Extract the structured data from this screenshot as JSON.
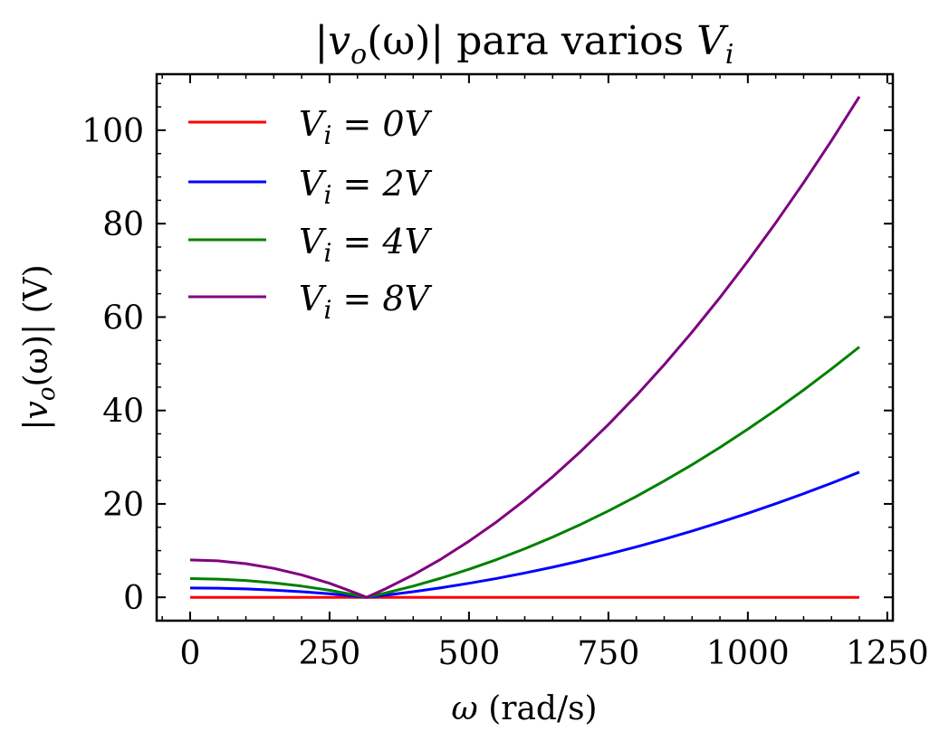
{
  "chart_data": {
    "type": "line",
    "title": "|v_o(ω)| para varios V_i",
    "xlabel": "ω (rad/s)",
    "ylabel": "|v_o(ω)| (V)",
    "xlim": [
      -60,
      1260
    ],
    "ylim": [
      -5,
      112
    ],
    "xticks": [
      0,
      250,
      500,
      750,
      1000,
      1250
    ],
    "yticks": [
      0,
      20,
      40,
      60,
      80,
      100
    ],
    "x_tick_labels": [
      "0",
      "250",
      "500",
      "750",
      "1000",
      "1250"
    ],
    "y_tick_labels": [
      "0",
      "20",
      "40",
      "60",
      "80",
      "100"
    ],
    "grid": false,
    "legend_position": "upper-left",
    "x": [
      0,
      50,
      100,
      150,
      200,
      250,
      300,
      316.2,
      350,
      400,
      450,
      500,
      550,
      600,
      650,
      700,
      750,
      800,
      850,
      900,
      950,
      1000,
      1050,
      1100,
      1150,
      1200
    ],
    "series": [
      {
        "name": "V_i = 0V",
        "color": "#ff0000",
        "values": [
          0,
          0,
          0,
          0,
          0,
          0,
          0,
          0,
          0,
          0,
          0,
          0,
          0,
          0,
          0,
          0,
          0,
          0,
          0,
          0,
          0,
          0,
          0,
          0,
          0,
          0
        ]
      },
      {
        "name": "V_i = 2V",
        "color": "#0000ff",
        "values": [
          2.0,
          1.95,
          1.8,
          1.55,
          1.2,
          0.75,
          0.2,
          0.0,
          0.45,
          1.2,
          2.05,
          3.0,
          4.05,
          5.2,
          6.45,
          7.8,
          9.25,
          10.8,
          12.45,
          14.2,
          16.05,
          18.0,
          20.05,
          22.2,
          24.45,
          26.8
        ]
      },
      {
        "name": "V_i = 4V",
        "color": "#008000",
        "values": [
          4.0,
          3.9,
          3.6,
          3.1,
          2.4,
          1.5,
          0.4,
          0.0,
          0.9,
          2.4,
          4.1,
          6.0,
          8.1,
          10.4,
          12.9,
          15.6,
          18.5,
          21.6,
          24.9,
          28.4,
          32.1,
          36.0,
          40.1,
          44.4,
          48.9,
          53.6
        ]
      },
      {
        "name": "V_i = 8V",
        "color": "#800080",
        "values": [
          8.0,
          7.8,
          7.2,
          6.2,
          4.8,
          3.0,
          0.8,
          0.0,
          1.8,
          4.8,
          8.2,
          12.0,
          16.2,
          20.8,
          25.8,
          31.2,
          37.0,
          43.2,
          49.8,
          56.8,
          64.2,
          72.0,
          80.2,
          88.8,
          97.8,
          107.2
        ]
      }
    ],
    "legend": {
      "entries": [
        {
          "label_var": "V",
          "label_sub": "i",
          "label_rest": " = 0V",
          "color": "#ff0000"
        },
        {
          "label_var": "V",
          "label_sub": "i",
          "label_rest": " = 2V",
          "color": "#0000ff"
        },
        {
          "label_var": "V",
          "label_sub": "i",
          "label_rest": " = 4V",
          "color": "#008000"
        },
        {
          "label_var": "V",
          "label_sub": "i",
          "label_rest": " = 8V",
          "color": "#800080"
        }
      ]
    },
    "title_parts": {
      "pre": "|",
      "v": "v",
      "o": "o",
      "mid": "(ω)| para varios ",
      "V": "V",
      "i": "i"
    },
    "xlabel_parts": {
      "omega": "ω",
      "rest": " (rad/s)"
    },
    "ylabel_parts": {
      "pre": "|",
      "v": "v",
      "o": "o",
      "rest": "(ω)| (V)"
    }
  }
}
